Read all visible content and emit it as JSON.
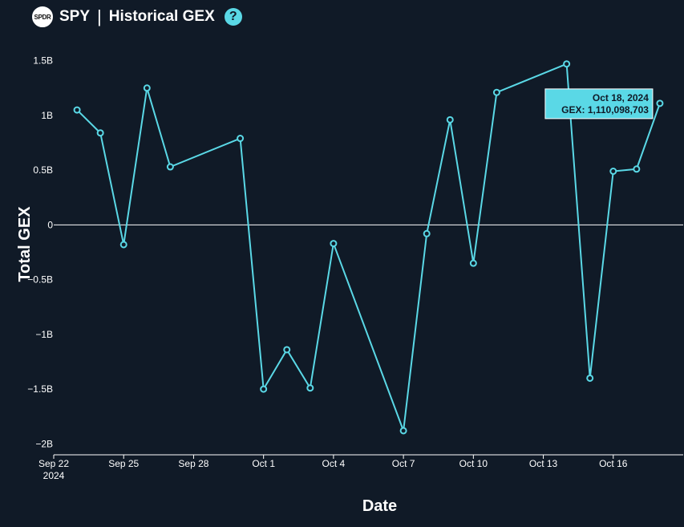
{
  "header": {
    "logo_text": "SPDR",
    "symbol": "SPY",
    "separator": "|",
    "title": "Historical GEX",
    "help_icon": "question-circle-icon"
  },
  "colors": {
    "background": "#101a27",
    "line": "#5ad8e6",
    "text": "#ffffff",
    "tooltip_bg": "#5ad8e6"
  },
  "chart_data": {
    "type": "line",
    "title": "",
    "xlabel": "Date",
    "ylabel": "Total GEX",
    "ylim": [
      -2.1,
      1.6
    ],
    "xlim": [
      "2024-09-22",
      "2024-10-19"
    ],
    "y_ticks": [
      {
        "value": 1.5,
        "label": "1.5B"
      },
      {
        "value": 1,
        "label": "1B"
      },
      {
        "value": 0.5,
        "label": "0.5B"
      },
      {
        "value": 0,
        "label": "0"
      },
      {
        "value": -0.5,
        "label": "−0.5B"
      },
      {
        "value": -1,
        "label": "−1B"
      },
      {
        "value": -1.5,
        "label": "−1.5B"
      },
      {
        "value": -2,
        "label": "−2B"
      }
    ],
    "x_ticks": [
      {
        "date": "2024-09-22",
        "label": "Sep 22",
        "sublabel": "2024"
      },
      {
        "date": "2024-09-25",
        "label": "Sep 25",
        "sublabel": ""
      },
      {
        "date": "2024-09-28",
        "label": "Sep 28",
        "sublabel": ""
      },
      {
        "date": "2024-10-01",
        "label": "Oct 1",
        "sublabel": ""
      },
      {
        "date": "2024-10-04",
        "label": "Oct 4",
        "sublabel": ""
      },
      {
        "date": "2024-10-07",
        "label": "Oct 7",
        "sublabel": ""
      },
      {
        "date": "2024-10-10",
        "label": "Oct 10",
        "sublabel": ""
      },
      {
        "date": "2024-10-13",
        "label": "Oct 13",
        "sublabel": ""
      },
      {
        "date": "2024-10-16",
        "label": "Oct 16",
        "sublabel": ""
      }
    ],
    "series": [
      {
        "points": [
          {
            "x": "2024-09-23",
            "y": 1.05
          },
          {
            "x": "2024-09-24",
            "y": 0.84
          },
          {
            "x": "2024-09-25",
            "y": -0.18
          },
          {
            "x": "2024-09-26",
            "y": 1.25
          },
          {
            "x": "2024-09-27",
            "y": 0.53
          },
          {
            "x": "2024-09-30",
            "y": 0.79
          },
          {
            "x": "2024-10-01",
            "y": -1.5
          },
          {
            "x": "2024-10-02",
            "y": -1.14
          },
          {
            "x": "2024-10-03",
            "y": -1.49
          },
          {
            "x": "2024-10-04",
            "y": -0.17
          },
          {
            "x": "2024-10-07",
            "y": -1.88
          },
          {
            "x": "2024-10-08",
            "y": -0.08
          },
          {
            "x": "2024-10-09",
            "y": 0.96
          },
          {
            "x": "2024-10-10",
            "y": -0.35
          },
          {
            "x": "2024-10-11",
            "y": 1.21
          },
          {
            "x": "2024-10-14",
            "y": 1.47
          },
          {
            "x": "2024-10-15",
            "y": -1.4
          },
          {
            "x": "2024-10-16",
            "y": 0.49
          },
          {
            "x": "2024-10-17",
            "y": 0.51
          },
          {
            "x": "2024-10-18",
            "y": 1.110098703
          }
        ]
      }
    ],
    "tooltip": {
      "date_label": "Oct 18, 2024",
      "value_label": "GEX: 1,110,098,703"
    },
    "grid": false,
    "zero_line": true,
    "legend": "none"
  }
}
